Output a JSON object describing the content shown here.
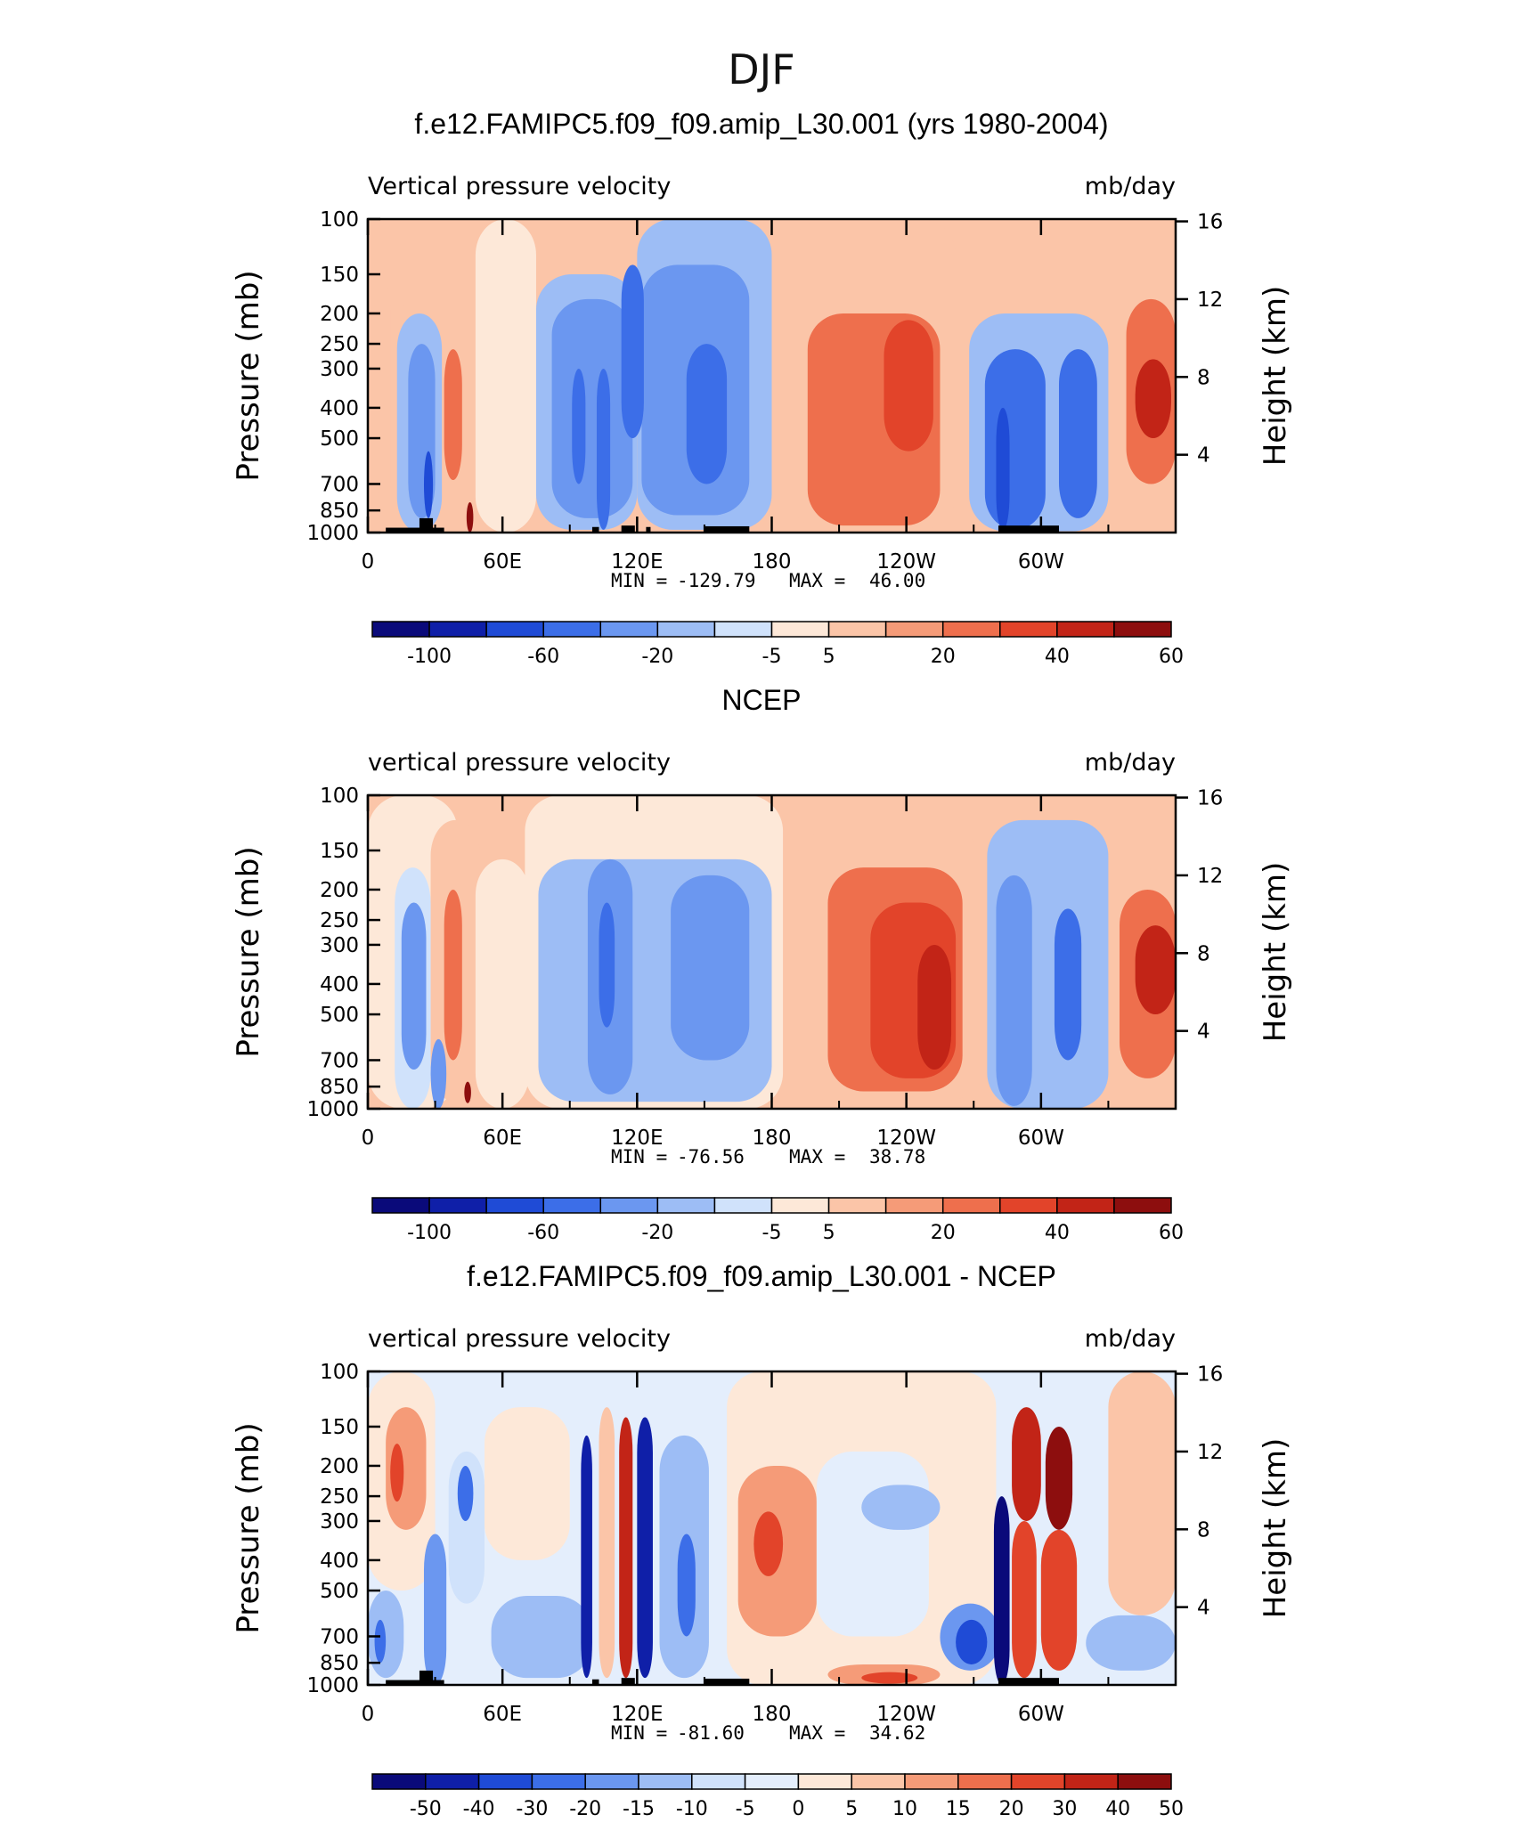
{
  "figure_title": "DJF",
  "chart_data": [
    {
      "type": "heatmap",
      "title": "f.e12.FAMIPC5.f09_f09.amip_L30.001 (yrs 1980-2004)",
      "variable_label": "Vertical pressure velocity",
      "units": "mb/day",
      "ylabel": "Pressure (mb)",
      "ylabel_right": "Height (km)",
      "x_ticks": [
        "0",
        "60E",
        "120E",
        "180",
        "120W",
        "60W"
      ],
      "y_ticks": [
        "100",
        "150",
        "200",
        "250",
        "300",
        "400",
        "500",
        "700",
        "850",
        "1000"
      ],
      "y_ticks_right": [
        "16",
        "12",
        "8",
        "4"
      ],
      "stats": {
        "min_label": "MIN =",
        "min": "-129.79",
        "max_label": "MAX =",
        "max": "46.00"
      },
      "colorbar_labels": [
        "-100",
        "-60",
        "-20",
        "-5",
        "5",
        "20",
        "40",
        "60"
      ],
      "colorbar_colors": [
        "#0a0a7a",
        "#0f1fa8",
        "#1f4bd6",
        "#3c6ee8",
        "#6b97f0",
        "#9dbdf5",
        "#d0e2fb",
        "#fde8d8",
        "#fbc5a8",
        "#f59b78",
        "#ee6f4d",
        "#e2442a",
        "#c22417",
        "#8d0e0e"
      ],
      "field": [
        {
          "v": 3,
          "lon0": 0,
          "lon1": 10,
          "p0": 150,
          "p1": 750
        },
        {
          "v": 1,
          "lon0": 10,
          "lon1": 16,
          "p0": 150,
          "p1": 900
        },
        {
          "v": -20,
          "lon0": 13,
          "lon1": 33,
          "p0": 200,
          "p1": 1000
        },
        {
          "v": -35,
          "lon0": 18,
          "lon1": 30,
          "p0": 250,
          "p1": 900
        },
        {
          "v": -80,
          "lon0": 25,
          "lon1": 29,
          "p0": 550,
          "p1": 900
        },
        {
          "v": 15,
          "lon0": 34,
          "lon1": 42,
          "p0": 260,
          "p1": 680
        },
        {
          "v": 45,
          "lon0": 44,
          "lon1": 47,
          "p0": 800,
          "p1": 1000
        },
        {
          "v": -5,
          "lon0": 48,
          "lon1": 75,
          "p0": 100,
          "p1": 1000
        },
        {
          "v": -20,
          "lon0": 75,
          "lon1": 120,
          "p0": 150,
          "p1": 980
        },
        {
          "v": -20,
          "lon0": 120,
          "lon1": 180,
          "p0": 100,
          "p1": 980
        },
        {
          "v": -35,
          "lon0": 82,
          "lon1": 118,
          "p0": 180,
          "p1": 900
        },
        {
          "v": -35,
          "lon0": 122,
          "lon1": 170,
          "p0": 140,
          "p1": 880
        },
        {
          "v": -60,
          "lon0": 91,
          "lon1": 97,
          "p0": 300,
          "p1": 700
        },
        {
          "v": -60,
          "lon0": 102,
          "lon1": 108,
          "p0": 300,
          "p1": 980
        },
        {
          "v": -60,
          "lon0": 113,
          "lon1": 123,
          "p0": 140,
          "p1": 500
        },
        {
          "v": -60,
          "lon0": 142,
          "lon1": 160,
          "p0": 250,
          "p1": 700
        },
        {
          "v": 3,
          "lon0": 188,
          "lon1": 262,
          "p0": 100,
          "p1": 980
        },
        {
          "v": 10,
          "lon0": 196,
          "lon1": 255,
          "p0": 200,
          "p1": 950
        },
        {
          "v": 20,
          "lon0": 230,
          "lon1": 252,
          "p0": 210,
          "p1": 550
        },
        {
          "v": -20,
          "lon0": 268,
          "lon1": 330,
          "p0": 200,
          "p1": 990
        },
        {
          "v": -45,
          "lon0": 275,
          "lon1": 302,
          "p0": 260,
          "p1": 980
        },
        {
          "v": -80,
          "lon0": 280,
          "lon1": 286,
          "p0": 400,
          "p1": 980
        },
        {
          "v": -60,
          "lon0": 308,
          "lon1": 325,
          "p0": 260,
          "p1": 900
        },
        {
          "v": 15,
          "lon0": 338,
          "lon1": 360,
          "p0": 180,
          "p1": 700
        },
        {
          "v": 35,
          "lon0": 342,
          "lon1": 358,
          "p0": 280,
          "p1": 500
        }
      ],
      "topography": [
        {
          "lon0": 8,
          "lon1": 34,
          "p_top": 965
        },
        {
          "lon0": 23,
          "lon1": 29,
          "p_top": 900
        },
        {
          "lon0": 100,
          "lon1": 103,
          "p_top": 960
        },
        {
          "lon0": 113,
          "lon1": 119,
          "p_top": 950
        },
        {
          "lon0": 124,
          "lon1": 126,
          "p_top": 960
        },
        {
          "lon0": 150,
          "lon1": 170,
          "p_top": 955
        },
        {
          "lon0": 281,
          "lon1": 308,
          "p_top": 950
        }
      ]
    },
    {
      "type": "heatmap",
      "title": "NCEP",
      "variable_label": "vertical pressure velocity",
      "units": "mb/day",
      "ylabel": "Pressure (mb)",
      "ylabel_right": "Height (km)",
      "x_ticks": [
        "0",
        "60E",
        "120E",
        "180",
        "120W",
        "60W"
      ],
      "y_ticks": [
        "100",
        "150",
        "200",
        "250",
        "300",
        "400",
        "500",
        "700",
        "850",
        "1000"
      ],
      "y_ticks_right": [
        "16",
        "12",
        "8",
        "4"
      ],
      "stats": {
        "min_label": "MIN =",
        "min": "-76.56",
        "max_label": "MAX =",
        "max": "38.78"
      },
      "colorbar_labels": [
        "-100",
        "-60",
        "-20",
        "-5",
        "5",
        "20",
        "40",
        "60"
      ],
      "colorbar_colors": [
        "#0a0a7a",
        "#0f1fa8",
        "#1f4bd6",
        "#3c6ee8",
        "#6b97f0",
        "#9dbdf5",
        "#d0e2fb",
        "#fde8d8",
        "#fbc5a8",
        "#f59b78",
        "#ee6f4d",
        "#e2442a",
        "#c22417",
        "#8d0e0e"
      ],
      "field": [
        {
          "v": -3,
          "lon0": 0,
          "lon1": 40,
          "p0": 100,
          "p1": 1000
        },
        {
          "v": 3,
          "lon0": 28,
          "lon1": 50,
          "p0": 120,
          "p1": 950
        },
        {
          "v": -10,
          "lon0": 12,
          "lon1": 28,
          "p0": 170,
          "p1": 1000
        },
        {
          "v": -25,
          "lon0": 15,
          "lon1": 26,
          "p0": 220,
          "p1": 750
        },
        {
          "v": -40,
          "lon0": 28,
          "lon1": 35,
          "p0": 600,
          "p1": 1000
        },
        {
          "v": 15,
          "lon0": 34,
          "lon1": 42,
          "p0": 200,
          "p1": 700
        },
        {
          "v": 40,
          "lon0": 43,
          "lon1": 46,
          "p0": 820,
          "p1": 960
        },
        {
          "v": -5,
          "lon0": 48,
          "lon1": 72,
          "p0": 160,
          "p1": 1000
        },
        {
          "v": -5,
          "lon0": 70,
          "lon1": 185,
          "p0": 100,
          "p1": 1000
        },
        {
          "v": -20,
          "lon0": 76,
          "lon1": 180,
          "p0": 160,
          "p1": 950
        },
        {
          "v": -35,
          "lon0": 98,
          "lon1": 118,
          "p0": 160,
          "p1": 900
        },
        {
          "v": -35,
          "lon0": 135,
          "lon1": 170,
          "p0": 180,
          "p1": 700
        },
        {
          "v": -60,
          "lon0": 103,
          "lon1": 110,
          "p0": 220,
          "p1": 550
        },
        {
          "v": 3,
          "lon0": 190,
          "lon1": 275,
          "p0": 130,
          "p1": 940
        },
        {
          "v": 10,
          "lon0": 205,
          "lon1": 265,
          "p0": 170,
          "p1": 880
        },
        {
          "v": 20,
          "lon0": 224,
          "lon1": 262,
          "p0": 220,
          "p1": 800
        },
        {
          "v": 35,
          "lon0": 245,
          "lon1": 260,
          "p0": 300,
          "p1": 750
        },
        {
          "v": -20,
          "lon0": 276,
          "lon1": 330,
          "p0": 120,
          "p1": 1000
        },
        {
          "v": -40,
          "lon0": 280,
          "lon1": 296,
          "p0": 180,
          "p1": 980
        },
        {
          "v": -45,
          "lon0": 306,
          "lon1": 318,
          "p0": 230,
          "p1": 700
        },
        {
          "v": 15,
          "lon0": 335,
          "lon1": 360,
          "p0": 200,
          "p1": 800
        },
        {
          "v": 30,
          "lon0": 342,
          "lon1": 360,
          "p0": 260,
          "p1": 500
        }
      ],
      "topography": []
    },
    {
      "type": "heatmap",
      "title": "f.e12.FAMIPC5.f09_f09.amip_L30.001 - NCEP",
      "variable_label": "vertical pressure velocity",
      "units": "mb/day",
      "ylabel": "Pressure (mb)",
      "ylabel_right": "Height (km)",
      "x_ticks": [
        "0",
        "60E",
        "120E",
        "180",
        "120W",
        "60W"
      ],
      "y_ticks": [
        "100",
        "150",
        "200",
        "250",
        "300",
        "400",
        "500",
        "700",
        "850",
        "1000"
      ],
      "y_ticks_right": [
        "16",
        "12",
        "8",
        "4"
      ],
      "stats": {
        "min_label": "MIN =",
        "min": "-81.60",
        "max_label": "MAX =",
        "max": "34.62"
      },
      "colorbar_labels": [
        "-50",
        "-40",
        "-30",
        "-20",
        "-15",
        "-10",
        "-5",
        "0",
        "5",
        "10",
        "15",
        "20",
        "30",
        "40",
        "50"
      ],
      "colorbar_colors": [
        "#0a0a7a",
        "#0f1fa8",
        "#1f4bd6",
        "#3c6ee8",
        "#6b97f0",
        "#9dbdf5",
        "#d0e2fb",
        "#e4eefc",
        "#fde8d8",
        "#fbc5a8",
        "#f59b78",
        "#ee6f4d",
        "#e2442a",
        "#c22417",
        "#8d0e0e"
      ],
      "field": [
        {
          "v": -2,
          "lon0": 0,
          "lon1": 360,
          "p0": 100,
          "p1": 1000
        },
        {
          "v": 3,
          "lon0": 0,
          "lon1": 30,
          "p0": 100,
          "p1": 500
        },
        {
          "v": 12,
          "lon0": 8,
          "lon1": 26,
          "p0": 130,
          "p1": 320
        },
        {
          "v": 22,
          "lon0": 10,
          "lon1": 16,
          "p0": 170,
          "p1": 260
        },
        {
          "v": -12,
          "lon0": 0,
          "lon1": 16,
          "p0": 500,
          "p1": 950
        },
        {
          "v": -25,
          "lon0": 3,
          "lon1": 8,
          "p0": 620,
          "p1": 850
        },
        {
          "v": -18,
          "lon0": 25,
          "lon1": 35,
          "p0": 330,
          "p1": 1000
        },
        {
          "v": -7,
          "lon0": 36,
          "lon1": 52,
          "p0": 180,
          "p1": 550
        },
        {
          "v": -25,
          "lon0": 40,
          "lon1": 47,
          "p0": 200,
          "p1": 300
        },
        {
          "v": 3,
          "lon0": 52,
          "lon1": 90,
          "p0": 130,
          "p1": 400
        },
        {
          "v": -12,
          "lon0": 55,
          "lon1": 100,
          "p0": 520,
          "p1": 950
        },
        {
          "v": -45,
          "lon0": 95,
          "lon1": 100,
          "p0": 160,
          "p1": 950
        },
        {
          "v": 6,
          "lon0": 103,
          "lon1": 110,
          "p0": 130,
          "p1": 950
        },
        {
          "v": 35,
          "lon0": 112,
          "lon1": 118,
          "p0": 140,
          "p1": 950
        },
        {
          "v": -45,
          "lon0": 120,
          "lon1": 127,
          "p0": 140,
          "p1": 950
        },
        {
          "v": -12,
          "lon0": 130,
          "lon1": 152,
          "p0": 160,
          "p1": 950
        },
        {
          "v": -25,
          "lon0": 138,
          "lon1": 146,
          "p0": 330,
          "p1": 700
        },
        {
          "v": 3,
          "lon0": 160,
          "lon1": 280,
          "p0": 100,
          "p1": 1000
        },
        {
          "v": 12,
          "lon0": 165,
          "lon1": 200,
          "p0": 200,
          "p1": 700
        },
        {
          "v": 22,
          "lon0": 172,
          "lon1": 185,
          "p0": 280,
          "p1": 450
        },
        {
          "v": -3,
          "lon0": 200,
          "lon1": 250,
          "p0": 180,
          "p1": 700
        },
        {
          "v": -12,
          "lon0": 220,
          "lon1": 255,
          "p0": 230,
          "p1": 320
        },
        {
          "v": 12,
          "lon0": 205,
          "lon1": 255,
          "p0": 860,
          "p1": 1000
        },
        {
          "v": 22,
          "lon0": 220,
          "lon1": 245,
          "p0": 910,
          "p1": 990
        },
        {
          "v": -18,
          "lon0": 255,
          "lon1": 282,
          "p0": 550,
          "p1": 900
        },
        {
          "v": -35,
          "lon0": 262,
          "lon1": 276,
          "p0": 620,
          "p1": 860
        },
        {
          "v": -55,
          "lon0": 279,
          "lon1": 286,
          "p0": 250,
          "p1": 1000
        },
        {
          "v": 35,
          "lon0": 287,
          "lon1": 300,
          "p0": 130,
          "p1": 300
        },
        {
          "v": 22,
          "lon0": 287,
          "lon1": 298,
          "p0": 300,
          "p1": 950
        },
        {
          "v": 42,
          "lon0": 302,
          "lon1": 314,
          "p0": 150,
          "p1": 320
        },
        {
          "v": 22,
          "lon0": 300,
          "lon1": 316,
          "p0": 320,
          "p1": 900
        },
        {
          "v": -12,
          "lon0": 320,
          "lon1": 360,
          "p0": 600,
          "p1": 900
        },
        {
          "v": 6,
          "lon0": 330,
          "lon1": 360,
          "p0": 100,
          "p1": 600
        }
      ],
      "topography": [
        {
          "lon0": 8,
          "lon1": 34,
          "p_top": 965
        },
        {
          "lon0": 23,
          "lon1": 29,
          "p_top": 900
        },
        {
          "lon0": 100,
          "lon1": 103,
          "p_top": 960
        },
        {
          "lon0": 113,
          "lon1": 119,
          "p_top": 950
        },
        {
          "lon0": 150,
          "lon1": 170,
          "p_top": 955
        },
        {
          "lon0": 281,
          "lon1": 308,
          "p_top": 950
        }
      ]
    }
  ]
}
